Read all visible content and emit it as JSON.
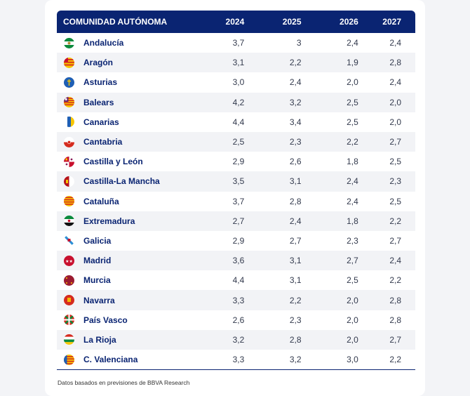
{
  "table": {
    "headers": [
      "COMUNIDAD AUTÓNOMA",
      "2024",
      "2025",
      "2026",
      "2027"
    ],
    "rows": [
      {
        "name": "Andalucía",
        "values": [
          "3,7",
          "3",
          "2,4",
          "2,4"
        ],
        "flag": "andalucia-flag"
      },
      {
        "name": "Aragón",
        "values": [
          "3,1",
          "2,2",
          "1,9",
          "2,8"
        ],
        "flag": "aragon-flag"
      },
      {
        "name": "Asturias",
        "values": [
          "3,0",
          "2,4",
          "2,0",
          "2,4"
        ],
        "flag": "asturias-flag"
      },
      {
        "name": "Balears",
        "values": [
          "4,2",
          "3,2",
          "2,5",
          "2,0"
        ],
        "flag": "balears-flag"
      },
      {
        "name": "Canarias",
        "values": [
          "4,4",
          "3,4",
          "2,5",
          "2,0"
        ],
        "flag": "canarias-flag"
      },
      {
        "name": "Cantabria",
        "values": [
          "2,5",
          "2,3",
          "2,2",
          "2,7"
        ],
        "flag": "cantabria-flag"
      },
      {
        "name": "Castilla y León",
        "values": [
          "2,9",
          "2,6",
          "1,8",
          "2,5"
        ],
        "flag": "castilla-leon-flag"
      },
      {
        "name": "Castilla-La Mancha",
        "values": [
          "3,5",
          "3,1",
          "2,4",
          "2,3"
        ],
        "flag": "castilla-la-mancha-flag"
      },
      {
        "name": "Cataluña",
        "values": [
          "3,7",
          "2,8",
          "2,4",
          "2,5"
        ],
        "flag": "cataluna-flag"
      },
      {
        "name": "Extremadura",
        "values": [
          "2,7",
          "2,4",
          "1,8",
          "2,2"
        ],
        "flag": "extremadura-flag"
      },
      {
        "name": "Galicia",
        "values": [
          "2,9",
          "2,7",
          "2,3",
          "2,7"
        ],
        "flag": "galicia-flag"
      },
      {
        "name": "Madrid",
        "values": [
          "3,6",
          "3,1",
          "2,7",
          "2,4"
        ],
        "flag": "madrid-flag"
      },
      {
        "name": "Murcia",
        "values": [
          "4,4",
          "3,1",
          "2,5",
          "2,2"
        ],
        "flag": "murcia-flag"
      },
      {
        "name": "Navarra",
        "values": [
          "3,3",
          "2,2",
          "2,0",
          "2,8"
        ],
        "flag": "navarra-flag"
      },
      {
        "name": "País Vasco",
        "values": [
          "2,6",
          "2,3",
          "2,0",
          "2,8"
        ],
        "flag": "pais-vasco-flag"
      },
      {
        "name": "La Rioja",
        "values": [
          "3,2",
          "2,8",
          "2,0",
          "2,7"
        ],
        "flag": "la-rioja-flag"
      },
      {
        "name": "C. Valenciana",
        "values": [
          "3,3",
          "3,2",
          "3,0",
          "2,2"
        ],
        "flag": "valenciana-flag"
      }
    ]
  },
  "source": "Datos basados en previsiones de BBVA Research",
  "colors": {
    "header_bg": "#0a2472",
    "row_alt": "#f2f3f6",
    "text": "#0a2472"
  }
}
